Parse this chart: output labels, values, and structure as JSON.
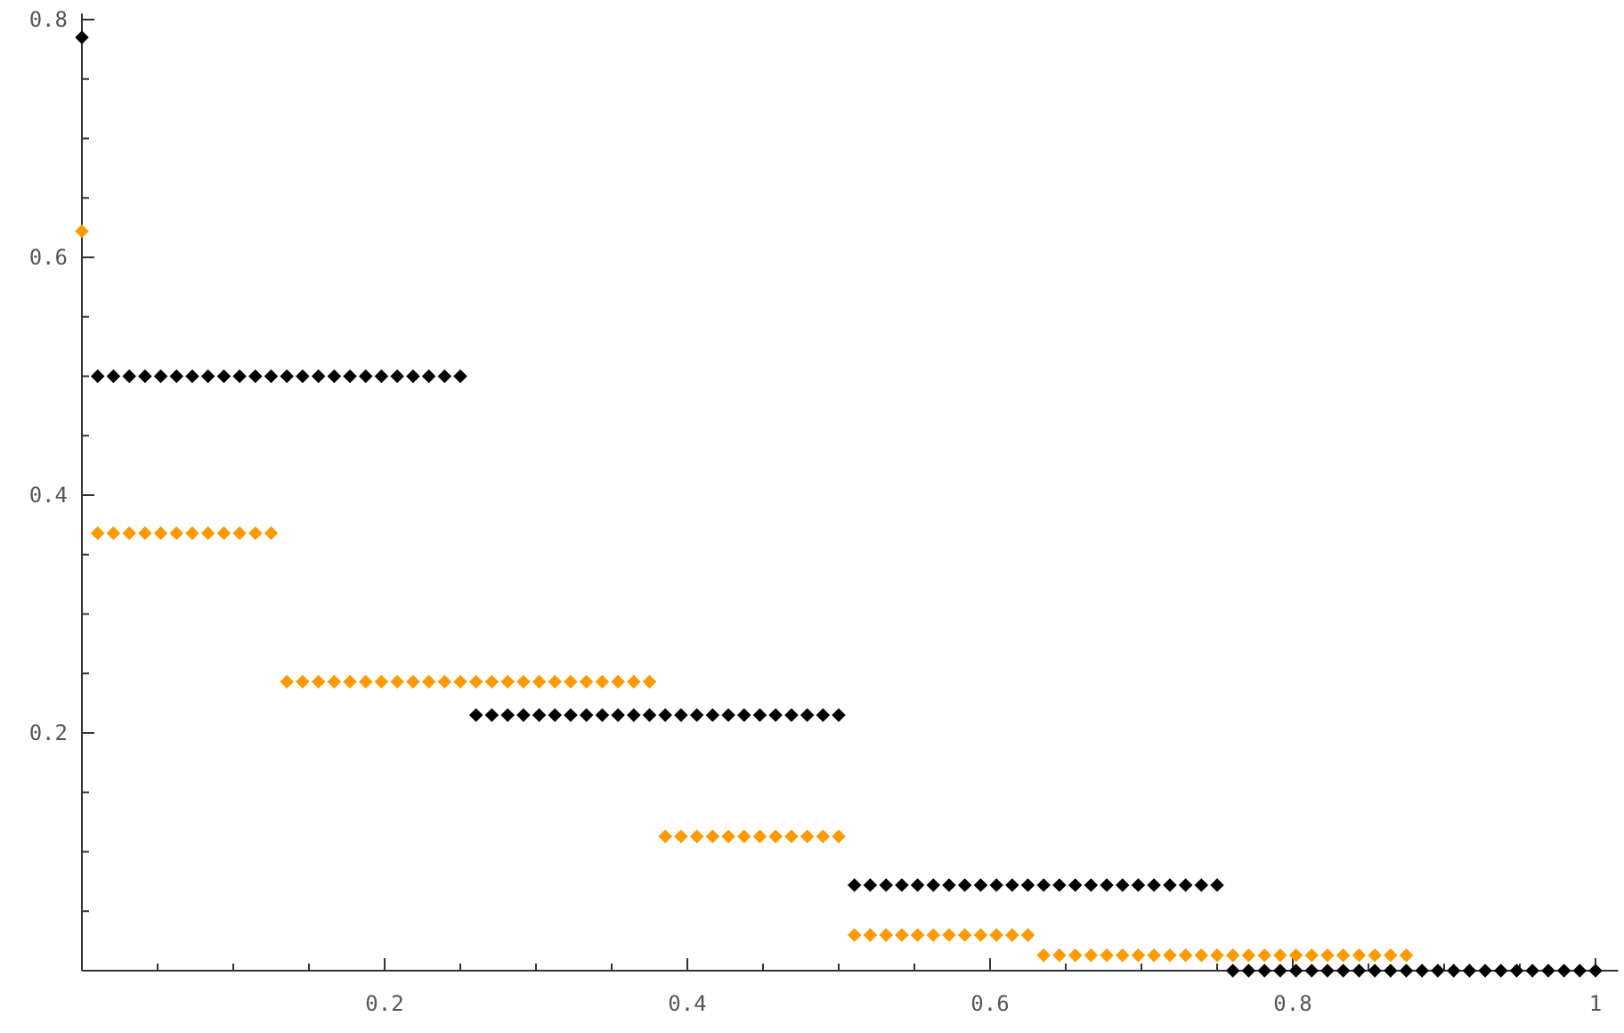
{
  "chart_data": {
    "type": "scatter",
    "marker": "diamond",
    "xlim": [
      0,
      1.015
    ],
    "ylim": [
      0,
      0.805
    ],
    "xticks": [
      {
        "value": 0.05,
        "label": null
      },
      {
        "value": 0.1,
        "label": null
      },
      {
        "value": 0.15,
        "label": null
      },
      0.2,
      {
        "value": 0.25,
        "label": null
      },
      {
        "value": 0.3,
        "label": null
      },
      {
        "value": 0.35,
        "label": null
      },
      0.4,
      {
        "value": 0.45,
        "label": null
      },
      {
        "value": 0.5,
        "label": null
      },
      {
        "value": 0.55,
        "label": null
      },
      0.6,
      {
        "value": 0.65,
        "label": null
      },
      {
        "value": 0.7,
        "label": null
      },
      {
        "value": 0.75,
        "label": null
      },
      0.8,
      {
        "value": 0.85,
        "label": null
      },
      {
        "value": 0.9,
        "label": null
      },
      {
        "value": 0.95,
        "label": null
      },
      1
    ],
    "yticks": [
      {
        "value": 0.05,
        "label": null
      },
      {
        "value": 0.1,
        "label": null
      },
      {
        "value": 0.15,
        "label": null
      },
      0.2,
      {
        "value": 0.25,
        "label": null
      },
      {
        "value": 0.3,
        "label": null
      },
      {
        "value": 0.35,
        "label": null
      },
      0.4,
      {
        "value": 0.45,
        "label": null
      },
      {
        "value": 0.5,
        "label": null
      },
      {
        "value": 0.55,
        "label": null
      },
      0.6,
      {
        "value": 0.65,
        "label": null
      },
      {
        "value": 0.7,
        "label": null
      },
      {
        "value": 0.75,
        "label": null
      },
      0.8
    ],
    "series": [
      {
        "color": "#000000",
        "x": [
          0,
          0.0104,
          0.0208,
          0.0313,
          0.0417,
          0.0521,
          0.0625,
          0.0729,
          0.0833,
          0.0938,
          0.1042,
          0.1146,
          0.125,
          0.1354,
          0.1458,
          0.1563,
          0.1667,
          0.1771,
          0.1875,
          0.1979,
          0.2083,
          0.2188,
          0.2292,
          0.2396,
          0.25,
          0.2604,
          0.2708,
          0.2813,
          0.2917,
          0.3021,
          0.3125,
          0.3229,
          0.3333,
          0.3438,
          0.3542,
          0.3646,
          0.375,
          0.3854,
          0.3958,
          0.4063,
          0.4167,
          0.4271,
          0.4375,
          0.4479,
          0.4583,
          0.4688,
          0.4792,
          0.4896,
          0.5,
          0.5104,
          0.5208,
          0.5313,
          0.5417,
          0.5521,
          0.5625,
          0.5729,
          0.5833,
          0.5938,
          0.6042,
          0.6146,
          0.625,
          0.6354,
          0.6458,
          0.6563,
          0.6667,
          0.6771,
          0.6875,
          0.6979,
          0.7083,
          0.7188,
          0.7292,
          0.7396,
          0.75,
          0.7604,
          0.7708,
          0.7813,
          0.7917,
          0.8021,
          0.8125,
          0.8229,
          0.8333,
          0.8438,
          0.8542,
          0.8646,
          0.875,
          0.8854,
          0.8958,
          0.9063,
          0.9167,
          0.9271,
          0.9375,
          0.9479,
          0.9583,
          0.9688,
          0.9792,
          0.9896,
          1
        ],
        "values": [
          0.785,
          0.5,
          0.5,
          0.5,
          0.5,
          0.5,
          0.5,
          0.5,
          0.5,
          0.5,
          0.5,
          0.5,
          0.5,
          0.5,
          0.5,
          0.5,
          0.5,
          0.5,
          0.5,
          0.5,
          0.5,
          0.5,
          0.5,
          0.5,
          0.5,
          0.215,
          0.215,
          0.215,
          0.215,
          0.215,
          0.215,
          0.215,
          0.215,
          0.215,
          0.215,
          0.215,
          0.215,
          0.215,
          0.215,
          0.215,
          0.215,
          0.215,
          0.215,
          0.215,
          0.215,
          0.215,
          0.215,
          0.215,
          0.215,
          0.072,
          0.072,
          0.072,
          0.072,
          0.072,
          0.072,
          0.072,
          0.072,
          0.072,
          0.072,
          0.072,
          0.072,
          0.072,
          0.072,
          0.072,
          0.072,
          0.072,
          0.072,
          0.072,
          0.072,
          0.072,
          0.072,
          0.072,
          0.072,
          0,
          0,
          0,
          0,
          0,
          0,
          0,
          0,
          0,
          0,
          0,
          0,
          0,
          0,
          0,
          0,
          0,
          0,
          0,
          0,
          0,
          0,
          0,
          0
        ]
      },
      {
        "color": "#ff9900",
        "x": [
          0,
          0.0104,
          0.0208,
          0.0313,
          0.0417,
          0.0521,
          0.0625,
          0.0729,
          0.0833,
          0.0938,
          0.1042,
          0.1146,
          0.125,
          0.1354,
          0.1458,
          0.1563,
          0.1667,
          0.1771,
          0.1875,
          0.1979,
          0.2083,
          0.2188,
          0.2292,
          0.2396,
          0.25,
          0.2604,
          0.2708,
          0.2813,
          0.2917,
          0.3021,
          0.3125,
          0.3229,
          0.3333,
          0.3438,
          0.3542,
          0.3646,
          0.375,
          0.3854,
          0.3958,
          0.4063,
          0.4167,
          0.4271,
          0.4375,
          0.4479,
          0.4583,
          0.4688,
          0.4792,
          0.4896,
          0.5,
          0.5104,
          0.5208,
          0.5313,
          0.5417,
          0.5521,
          0.5625,
          0.5729,
          0.5833,
          0.5938,
          0.6042,
          0.6146,
          0.625,
          0.6354,
          0.6458,
          0.6563,
          0.6667,
          0.6771,
          0.6875,
          0.6979,
          0.7083,
          0.7188,
          0.7292,
          0.7396,
          0.75,
          0.7604,
          0.7708,
          0.7813,
          0.7917,
          0.8021,
          0.8125,
          0.8229,
          0.8333,
          0.8438,
          0.8542,
          0.8646,
          0.875
        ],
        "values": [
          0.622,
          0.368,
          0.368,
          0.368,
          0.368,
          0.368,
          0.368,
          0.368,
          0.368,
          0.368,
          0.368,
          0.368,
          0.368,
          0.243,
          0.243,
          0.243,
          0.243,
          0.243,
          0.243,
          0.243,
          0.243,
          0.243,
          0.243,
          0.243,
          0.243,
          0.243,
          0.243,
          0.243,
          0.243,
          0.243,
          0.243,
          0.243,
          0.243,
          0.243,
          0.243,
          0.243,
          0.243,
          0.113,
          0.113,
          0.113,
          0.113,
          0.113,
          0.113,
          0.113,
          0.113,
          0.113,
          0.113,
          0.113,
          0.113,
          0.03,
          0.03,
          0.03,
          0.03,
          0.03,
          0.03,
          0.03,
          0.03,
          0.03,
          0.03,
          0.03,
          0.03,
          0.013,
          0.013,
          0.013,
          0.013,
          0.013,
          0.013,
          0.013,
          0.013,
          0.013,
          0.013,
          0.013,
          0.013,
          0.013,
          0.013,
          0.013,
          0.013,
          0.013,
          0.013,
          0.013,
          0.013,
          0.013,
          0.013,
          0.013,
          0.013
        ]
      }
    ]
  }
}
